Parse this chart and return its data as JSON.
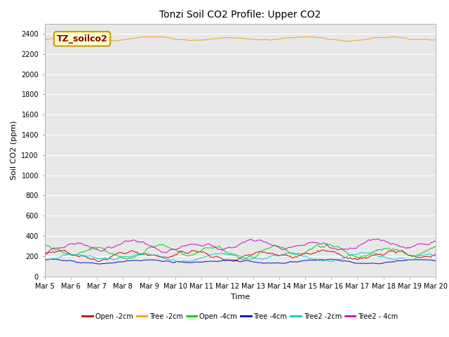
{
  "title": "Tonzi Soil CO2 Profile: Upper CO2",
  "ylabel": "Soil CO2 (ppm)",
  "xlabel": "Time",
  "ylim": [
    0,
    2500
  ],
  "yticks": [
    0,
    200,
    400,
    600,
    800,
    1000,
    1200,
    1400,
    1600,
    1800,
    2000,
    2200,
    2400
  ],
  "x_tick_labels": [
    "Mar 5",
    "Mar 6",
    "Mar 7",
    "Mar 8",
    "Mar 9",
    "Mar 10",
    "Mar 11",
    "Mar 12",
    "Mar 13",
    "Mar 14",
    "Mar 15",
    "Mar 16",
    "Mar 17",
    "Mar 18",
    "Mar 19",
    "Mar 20"
  ],
  "n_days": 16,
  "annotation_label": "TZ_soilco2",
  "background_color": "#e8e8e8",
  "series": [
    {
      "label": "Open -2cm",
      "color": "#cc0000",
      "base": 210,
      "amp": 35,
      "noise": 25,
      "trend": 5,
      "period": 2.5
    },
    {
      "label": "Tree -2cm",
      "color": "#ff9900",
      "base": 2350,
      "amp": 15,
      "noise": 8,
      "trend": 0,
      "period": 3.0
    },
    {
      "label": "Open -4cm",
      "color": "#00cc00",
      "base": 245,
      "amp": 50,
      "noise": 30,
      "trend": 8,
      "period": 2.2
    },
    {
      "label": "Tree -4cm",
      "color": "#0000cc",
      "base": 145,
      "amp": 15,
      "noise": 10,
      "trend": 2,
      "period": 3.5
    },
    {
      "label": "Tree2 -2cm",
      "color": "#00cccc",
      "base": 190,
      "amp": 30,
      "noise": 20,
      "trend": 3,
      "period": 2.8
    },
    {
      "label": "Tree2 - 4cm",
      "color": "#cc00cc",
      "base": 295,
      "amp": 40,
      "noise": 25,
      "trend": 20,
      "period": 2.3
    }
  ],
  "n_points": 480,
  "legend_entries": [
    {
      "label": "Open -2cm",
      "color": "#cc0000"
    },
    {
      "label": "Tree -2cm",
      "color": "#ff9900"
    },
    {
      "label": "Open -4cm",
      "color": "#00cc00"
    },
    {
      "label": "Tree -4cm",
      "color": "#0000cc"
    },
    {
      "label": "Tree2 -2cm",
      "color": "#00cccc"
    },
    {
      "label": "Tree2 - 4cm",
      "color": "#cc00cc"
    }
  ],
  "figsize": [
    6.4,
    4.8
  ],
  "dpi": 100,
  "title_fontsize": 10,
  "axis_fontsize": 8,
  "tick_fontsize": 7
}
